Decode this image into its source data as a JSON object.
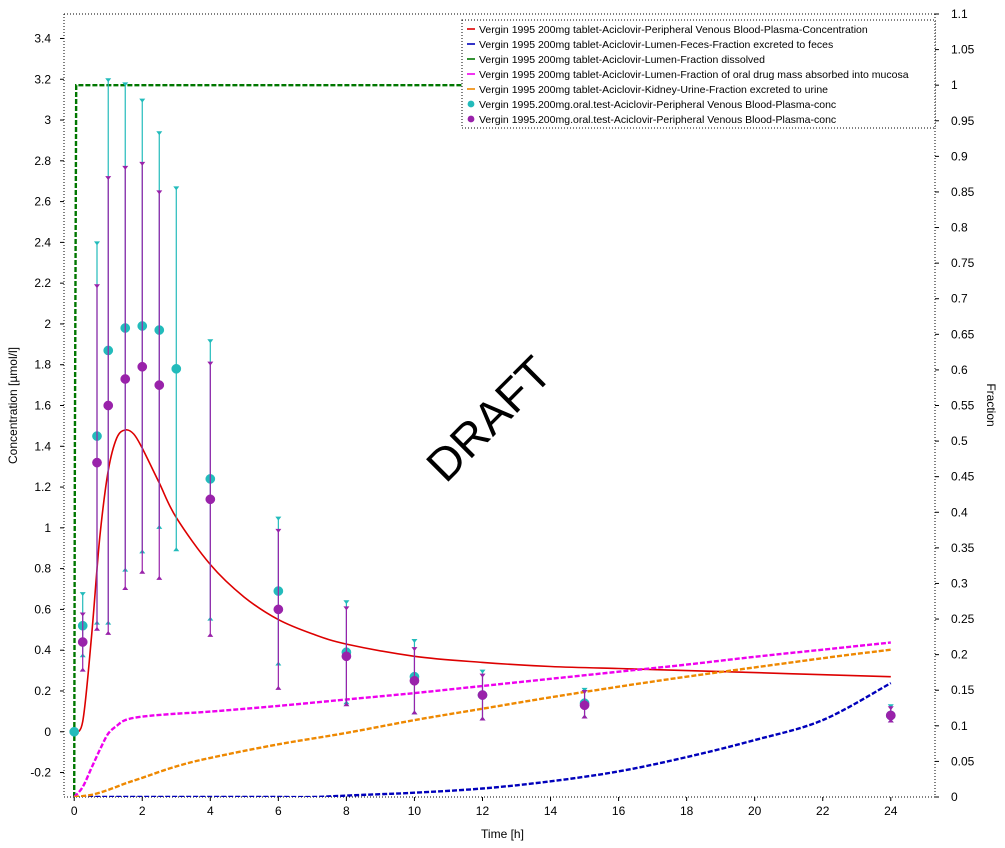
{
  "chart_data": {
    "type": "line",
    "title": "",
    "xlabel": "Time [h]",
    "ylabel": "Concentration [µmol/l]",
    "y2label": "Fraction",
    "xlim": [
      -0.3,
      25.3
    ],
    "ylim": [
      -0.32,
      3.52
    ],
    "y2lim": [
      0,
      1.1
    ],
    "x_ticks": [
      0,
      2,
      4,
      6,
      8,
      10,
      12,
      14,
      16,
      18,
      20,
      22,
      24
    ],
    "y_ticks": [
      -0.2,
      0,
      0.2,
      0.4,
      0.6,
      0.8,
      1,
      1.2,
      1.4,
      1.6,
      1.8,
      2,
      2.2,
      2.4,
      2.6,
      2.8,
      3,
      3.2,
      3.4
    ],
    "y_tick_labels": [
      "-0.2",
      "0",
      "0.2",
      "0.4",
      "0.6",
      "0.8",
      "1",
      "1.2",
      "1.4",
      "1.6",
      "1.8",
      "2",
      "2.2",
      "2.4",
      "2.6",
      "2.8",
      "3",
      "3.2",
      "3.4"
    ],
    "y2_ticks": [
      0,
      0.05,
      0.1,
      0.15,
      0.2,
      0.25,
      0.3,
      0.35,
      0.4,
      0.45,
      0.5,
      0.55,
      0.6,
      0.65,
      0.7,
      0.75,
      0.8,
      0.85,
      0.9,
      0.95,
      1,
      1.05,
      1.1
    ],
    "y2_tick_labels": [
      "0",
      "0.05",
      "0.1",
      "0.15",
      "0.2",
      "0.25",
      "0.3",
      "0.35",
      "0.4",
      "0.45",
      "0.5",
      "0.55",
      "0.6",
      "0.65",
      "0.7",
      "0.75",
      "0.8",
      "0.85",
      "0.9",
      "0.95",
      "1",
      "1.05",
      "1.1"
    ],
    "legend_position": "top-right",
    "grid": false,
    "watermark": "DRAFT",
    "series": [
      {
        "name": "Vergin 1995 200mg tablet-Aciclovir-Peripheral Venous Blood-Plasma-Concentration",
        "axis": "left",
        "kind": "line",
        "color": "#dd0000",
        "dash": "solid",
        "x": [
          0,
          0.25,
          0.5,
          0.75,
          1,
          1.25,
          1.5,
          1.75,
          2,
          2.5,
          3,
          4,
          5,
          6,
          7,
          8,
          10,
          12,
          14,
          16,
          18,
          20,
          22,
          24
        ],
        "y": [
          0,
          0.05,
          0.45,
          0.95,
          1.28,
          1.44,
          1.48,
          1.46,
          1.39,
          1.22,
          1.05,
          0.82,
          0.66,
          0.55,
          0.48,
          0.43,
          0.37,
          0.34,
          0.32,
          0.31,
          0.3,
          0.29,
          0.28,
          0.27
        ]
      },
      {
        "name": "Vergin 1995 200mg tablet-Aciclovir-Lumen-Feces-Fraction excreted to feces",
        "axis": "right",
        "kind": "line",
        "color": "#0000bb",
        "dash": "dashed",
        "x": [
          0,
          2,
          4,
          6,
          7,
          8,
          9,
          10,
          12,
          14,
          16,
          18,
          20,
          22,
          24
        ],
        "y": [
          0,
          0,
          0,
          0,
          0,
          0.002,
          0.004,
          0.006,
          0.012,
          0.022,
          0.036,
          0.056,
          0.08,
          0.108,
          0.16
        ]
      },
      {
        "name": "Vergin 1995 200mg tablet-Aciclovir-Lumen-Fraction dissolved",
        "axis": "right",
        "kind": "line",
        "color": "#007700",
        "dash": "dashed",
        "x": [
          0,
          0.02,
          0.06,
          0.5,
          2,
          6,
          10,
          14,
          18,
          22,
          24
        ],
        "y": [
          0,
          0.5,
          1,
          1,
          1,
          1,
          1,
          1,
          1,
          1,
          1
        ]
      },
      {
        "name": "Vergin 1995 200mg tablet-Aciclovir-Lumen-Fraction of oral drug mass absorbed into mucosa",
        "axis": "right",
        "kind": "line",
        "color": "#ee00ee",
        "dash": "dashed",
        "x": [
          0,
          0.25,
          0.5,
          0.75,
          1,
          1.25,
          1.5,
          2,
          3,
          4,
          6,
          8,
          10,
          12,
          14,
          16,
          18,
          20,
          22,
          24
        ],
        "y": [
          0,
          0.014,
          0.04,
          0.066,
          0.089,
          0.1,
          0.108,
          0.113,
          0.117,
          0.12,
          0.128,
          0.137,
          0.146,
          0.156,
          0.166,
          0.176,
          0.186,
          0.197,
          0.207,
          0.217
        ]
      },
      {
        "name": "Vergin 1995 200mg tablet-Aciclovir-Kidney-Urine-Fraction excreted to urine",
        "axis": "right",
        "kind": "line",
        "color": "#ee8800",
        "dash": "dashed",
        "x": [
          0,
          0.5,
          1,
          1.5,
          2,
          3,
          4,
          6,
          8,
          10,
          12,
          14,
          16,
          18,
          20,
          22,
          24
        ],
        "y": [
          0,
          0.003,
          0.01,
          0.019,
          0.027,
          0.043,
          0.055,
          0.074,
          0.09,
          0.108,
          0.124,
          0.14,
          0.155,
          0.169,
          0.182,
          0.195,
          0.207
        ]
      },
      {
        "name": "Vergin 1995.200mg.oral.test-Aciclovir-Peripheral Venous Blood-Plasma-conc",
        "axis": "left",
        "kind": "scatter",
        "color": "#22bbbb",
        "x": [
          0,
          0.25,
          0.67,
          1,
          1.5,
          2,
          2.5,
          3,
          4,
          6,
          8,
          10,
          12,
          15,
          24
        ],
        "y": [
          0,
          0.52,
          1.45,
          1.87,
          1.98,
          1.99,
          1.97,
          1.78,
          1.24,
          0.69,
          0.39,
          0.27,
          0.18,
          0.14,
          0.08
        ],
        "err_low": [
          0,
          0.37,
          0.53,
          0.53,
          0.79,
          0.88,
          1.0,
          0.89,
          0.55,
          0.33,
          0.14,
          0.09,
          0.06,
          0.07,
          0.05
        ],
        "err_high": [
          0,
          0.68,
          2.4,
          3.2,
          3.18,
          3.1,
          2.94,
          2.67,
          1.92,
          1.05,
          0.64,
          0.45,
          0.3,
          0.21,
          0.13
        ]
      },
      {
        "name": "Vergin 1995.200mg.oral.test-Aciclovir-Peripheral Venous Blood-Plasma-conc",
        "axis": "left",
        "kind": "scatter",
        "color": "#9922aa",
        "x": [
          0.25,
          0.67,
          1,
          1.5,
          2,
          2.5,
          4,
          6,
          8,
          10,
          12,
          15,
          24
        ],
        "y": [
          0.44,
          1.32,
          1.6,
          1.73,
          1.79,
          1.7,
          1.14,
          0.6,
          0.37,
          0.25,
          0.18,
          0.13,
          0.08
        ],
        "err_low": [
          0.3,
          0.5,
          0.48,
          0.7,
          0.78,
          0.75,
          0.47,
          0.21,
          0.13,
          0.09,
          0.06,
          0.07,
          0.05
        ],
        "err_high": [
          0.58,
          2.19,
          2.72,
          2.77,
          2.79,
          2.65,
          1.81,
          0.99,
          0.61,
          0.41,
          0.28,
          0.2,
          0.12
        ]
      }
    ]
  }
}
